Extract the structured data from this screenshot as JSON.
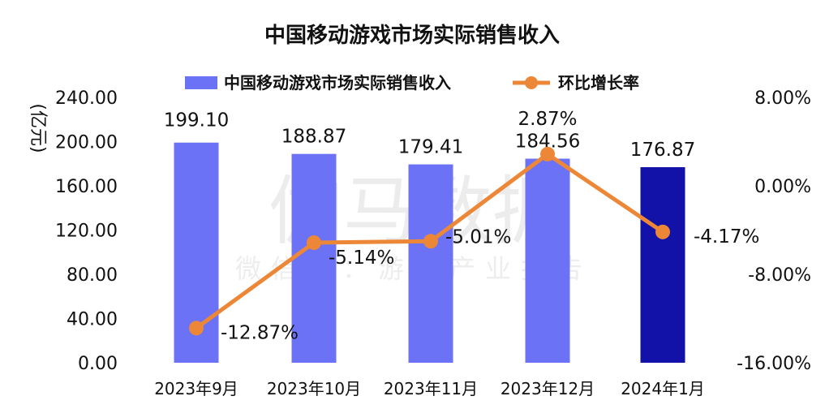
{
  "watermark": {
    "line1": "伽马数据",
    "line2": "微信号：游戏产业报告"
  },
  "chart_data": {
    "type": "bar+line",
    "title": "中国移动游戏市场实际销售收入",
    "categories": [
      "2023年9月",
      "2023年10月",
      "2023年11月",
      "2023年12月",
      "2024年1月"
    ],
    "series": [
      {
        "name": "中国移动游戏市场实际销售收入",
        "type": "bar",
        "axis": "left",
        "values": [
          199.1,
          188.87,
          179.41,
          184.56,
          176.87
        ],
        "value_labels": [
          "199.10",
          "188.87",
          "179.41",
          "184.56",
          "176.87"
        ],
        "color": "#6b72f6",
        "highlight_color": "#1212a8"
      },
      {
        "name": "环比增长率",
        "type": "line",
        "axis": "right",
        "values": [
          -12.87,
          -5.14,
          -5.01,
          2.87,
          -4.17
        ],
        "value_labels": [
          "-12.87%",
          "-5.14%",
          "-5.01%",
          "2.87%",
          "-4.17%"
        ],
        "color": "#ed8738"
      }
    ],
    "y_left": {
      "unit_label": "(亿元)",
      "range": [
        0,
        240
      ],
      "ticks": [
        0,
        40,
        80,
        120,
        160,
        200,
        240
      ],
      "tick_labels": [
        "0.00",
        "40.00",
        "80.00",
        "120.00",
        "160.00",
        "200.00",
        "240.00"
      ]
    },
    "y_right": {
      "range": [
        -16,
        8
      ],
      "ticks": [
        -16,
        -8,
        0,
        8
      ],
      "tick_labels": [
        "-16.00%",
        "-8.00%",
        "0.00%",
        "8.00%"
      ]
    },
    "legend_position": "top-center",
    "grid": false
  }
}
